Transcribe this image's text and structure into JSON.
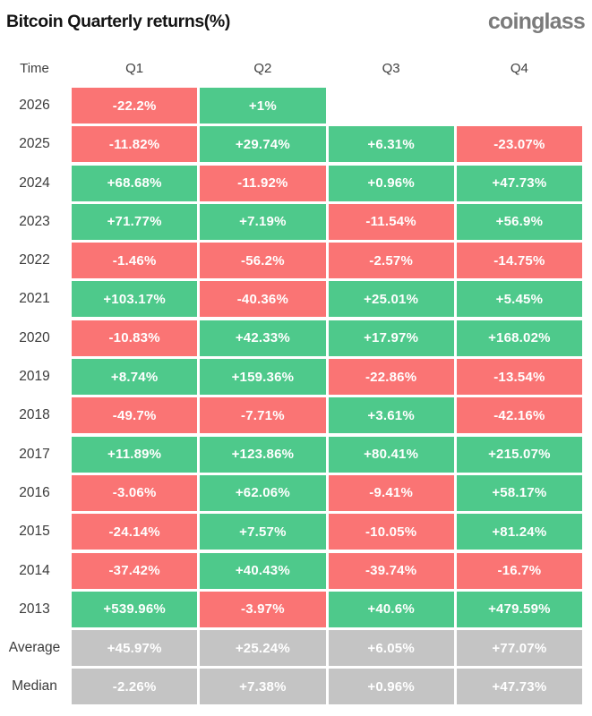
{
  "header": {
    "title": "Bitcoin Quarterly returns(%)",
    "logo": "coinglass"
  },
  "colors": {
    "positive": "#4ec98b",
    "negative": "#fa7474",
    "neutral": "#c4c4c4",
    "title_text": "#141414",
    "logo_text": "#7b7b7b",
    "cell_text": "#ffffff"
  },
  "table": {
    "header": [
      "Time",
      "Q1",
      "Q2",
      "Q3",
      "Q4"
    ],
    "rows": [
      {
        "label": "2026",
        "kind": "year",
        "cells": [
          "-22.2%",
          "+1%",
          "",
          ""
        ]
      },
      {
        "label": "2025",
        "kind": "year",
        "cells": [
          "-11.82%",
          "+29.74%",
          "+6.31%",
          "-23.07%"
        ]
      },
      {
        "label": "2024",
        "kind": "year",
        "cells": [
          "+68.68%",
          "-11.92%",
          "+0.96%",
          "+47.73%"
        ]
      },
      {
        "label": "2023",
        "kind": "year",
        "cells": [
          "+71.77%",
          "+7.19%",
          "-11.54%",
          "+56.9%"
        ]
      },
      {
        "label": "2022",
        "kind": "year",
        "cells": [
          "-1.46%",
          "-56.2%",
          "-2.57%",
          "-14.75%"
        ]
      },
      {
        "label": "2021",
        "kind": "year",
        "cells": [
          "+103.17%",
          "-40.36%",
          "+25.01%",
          "+5.45%"
        ]
      },
      {
        "label": "2020",
        "kind": "year",
        "cells": [
          "-10.83%",
          "+42.33%",
          "+17.97%",
          "+168.02%"
        ]
      },
      {
        "label": "2019",
        "kind": "year",
        "cells": [
          "+8.74%",
          "+159.36%",
          "-22.86%",
          "-13.54%"
        ]
      },
      {
        "label": "2018",
        "kind": "year",
        "cells": [
          "-49.7%",
          "-7.71%",
          "+3.61%",
          "-42.16%"
        ]
      },
      {
        "label": "2017",
        "kind": "year",
        "cells": [
          "+11.89%",
          "+123.86%",
          "+80.41%",
          "+215.07%"
        ]
      },
      {
        "label": "2016",
        "kind": "year",
        "cells": [
          "-3.06%",
          "+62.06%",
          "-9.41%",
          "+58.17%"
        ]
      },
      {
        "label": "2015",
        "kind": "year",
        "cells": [
          "-24.14%",
          "+7.57%",
          "-10.05%",
          "+81.24%"
        ]
      },
      {
        "label": "2014",
        "kind": "year",
        "cells": [
          "-37.42%",
          "+40.43%",
          "-39.74%",
          "-16.7%"
        ]
      },
      {
        "label": "2013",
        "kind": "year",
        "cells": [
          "+539.96%",
          "-3.97%",
          "+40.6%",
          "+479.59%"
        ]
      },
      {
        "label": "Average",
        "kind": "summary",
        "cells": [
          "+45.97%",
          "+25.24%",
          "+6.05%",
          "+77.07%"
        ]
      },
      {
        "label": "Median",
        "kind": "summary",
        "cells": [
          "-2.26%",
          "+7.38%",
          "+0.96%",
          "+47.73%"
        ]
      }
    ]
  },
  "chart_data": {
    "type": "table",
    "title": "Bitcoin Quarterly returns(%)",
    "columns": [
      "Q1",
      "Q2",
      "Q3",
      "Q4"
    ],
    "rows": [
      {
        "label": "2026",
        "values": [
          -22.2,
          1.0,
          null,
          null
        ]
      },
      {
        "label": "2025",
        "values": [
          -11.82,
          29.74,
          6.31,
          -23.07
        ]
      },
      {
        "label": "2024",
        "values": [
          68.68,
          -11.92,
          0.96,
          47.73
        ]
      },
      {
        "label": "2023",
        "values": [
          71.77,
          7.19,
          -11.54,
          56.9
        ]
      },
      {
        "label": "2022",
        "values": [
          -1.46,
          -56.2,
          -2.57,
          -14.75
        ]
      },
      {
        "label": "2021",
        "values": [
          103.17,
          -40.36,
          25.01,
          5.45
        ]
      },
      {
        "label": "2020",
        "values": [
          -10.83,
          42.33,
          17.97,
          168.02
        ]
      },
      {
        "label": "2019",
        "values": [
          8.74,
          159.36,
          -22.86,
          -13.54
        ]
      },
      {
        "label": "2018",
        "values": [
          -49.7,
          -7.71,
          3.61,
          -42.16
        ]
      },
      {
        "label": "2017",
        "values": [
          11.89,
          123.86,
          80.41,
          215.07
        ]
      },
      {
        "label": "2016",
        "values": [
          -3.06,
          62.06,
          -9.41,
          58.17
        ]
      },
      {
        "label": "2015",
        "values": [
          -24.14,
          7.57,
          -10.05,
          81.24
        ]
      },
      {
        "label": "2014",
        "values": [
          -37.42,
          40.43,
          -39.74,
          -16.7
        ]
      },
      {
        "label": "2013",
        "values": [
          539.96,
          -3.97,
          40.6,
          479.59
        ]
      },
      {
        "label": "Average",
        "values": [
          45.97,
          25.24,
          6.05,
          77.07
        ]
      },
      {
        "label": "Median",
        "values": [
          -2.26,
          7.38,
          0.96,
          47.73
        ]
      }
    ],
    "color_coding": "green = positive return, red = negative return, gray = Average/Median summary rows",
    "legend_position": "none",
    "grid": false
  }
}
